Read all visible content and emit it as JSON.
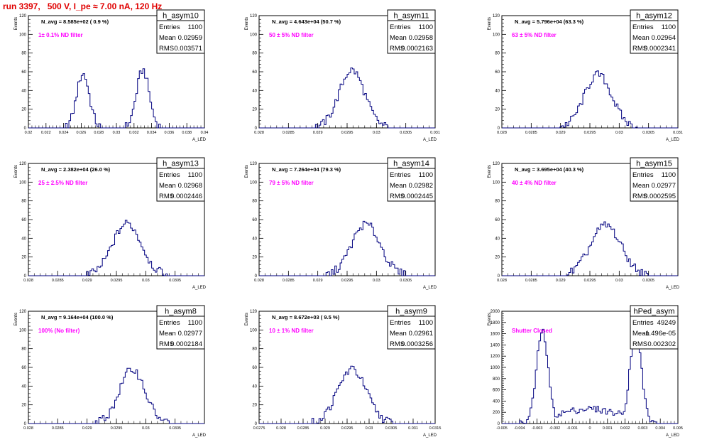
{
  "title": "run 3397,   500 V, I_pe ≈ 7.00 nA, 120 Hz",
  "colors": {
    "hist": "#00007f",
    "magenta": "#ff00ff",
    "title": "#e00000"
  },
  "stats_labels": {
    "entries": "Entries",
    "mean": "Mean",
    "rms": "RMS"
  },
  "axis_labels": {
    "y": "Events",
    "x": "A_LED"
  },
  "chart_data": [
    {
      "type": "bar",
      "name": "h_asym10",
      "nline": "N_avg = 8.585e+02 ( 0.9 %)",
      "filter": "1± 0.1% ND filter",
      "entries": "1100",
      "mean": "0.02959",
      "rms": "0.003571",
      "xlim": [
        0.02,
        0.04
      ],
      "ylim": [
        0,
        120
      ],
      "xticks": [
        "0.02",
        "0.022",
        "0.024",
        "0.026",
        "0.028",
        "0.03",
        "0.032",
        "0.034",
        "0.036",
        "0.038",
        "0.04"
      ],
      "yticks": [
        "0",
        "20",
        "40",
        "60",
        "80",
        "100",
        "120"
      ],
      "peaks": [
        {
          "c": 0.0262,
          "s": 0.00072,
          "h": 58
        },
        {
          "c": 0.033,
          "s": 0.00072,
          "h": 62
        }
      ]
    },
    {
      "type": "bar",
      "name": "h_asym11",
      "nline": "N_avg = 4.643e+04 (50.7 %)",
      "filter": "50 ± 5% ND filter",
      "entries": "1100",
      "mean": "0.02958",
      "rms": "0.0002163",
      "xlim": [
        0.028,
        0.031
      ],
      "ylim": [
        0,
        120
      ],
      "xticks": [
        "0.028",
        "0.0285",
        "0.029",
        "0.0295",
        "0.03",
        "0.0305",
        "0.031"
      ],
      "yticks": [
        "0",
        "20",
        "40",
        "60",
        "80",
        "100",
        "120"
      ],
      "peaks": [
        {
          "c": 0.02958,
          "s": 0.000216,
          "h": 62
        }
      ]
    },
    {
      "type": "bar",
      "name": "h_asym12",
      "nline": "N_avg = 5.796e+04 (63.3 %)",
      "filter": "63 ± 5% ND filter",
      "entries": "1100",
      "mean": "0.02964",
      "rms": "0.0002341",
      "xlim": [
        0.028,
        0.031
      ],
      "ylim": [
        0,
        120
      ],
      "xticks": [
        "0.028",
        "0.0285",
        "0.029",
        "0.0295",
        "0.03",
        "0.0305",
        "0.031"
      ],
      "yticks": [
        "0",
        "20",
        "40",
        "60",
        "80",
        "100",
        "120"
      ],
      "peaks": [
        {
          "c": 0.02964,
          "s": 0.000234,
          "h": 57
        }
      ]
    },
    {
      "type": "bar",
      "name": "h_asym13",
      "nline": "N_avg = 2.382e+04 (26.0 %)",
      "filter": "25 ± 2.5% ND filter",
      "entries": "1100",
      "mean": "0.02968",
      "rms": "0.0002446",
      "xlim": [
        0.028,
        0.031
      ],
      "ylim": [
        0,
        120
      ],
      "xticks": [
        "0.028",
        "0.0285",
        "0.029",
        "0.0295",
        "0.03",
        "0.0305"
      ],
      "yticks": [
        "0",
        "20",
        "40",
        "60",
        "80",
        "100",
        "120"
      ],
      "peaks": [
        {
          "c": 0.02968,
          "s": 0.000245,
          "h": 56
        }
      ]
    },
    {
      "type": "bar",
      "name": "h_asym14",
      "nline": "N_avg = 7.264e+04 (79.3 %)",
      "filter": "79 ± 5% ND filter",
      "entries": "1100",
      "mean": "0.02982",
      "rms": "0.0002445",
      "xlim": [
        0.028,
        0.031
      ],
      "ylim": [
        0,
        120
      ],
      "xticks": [
        "0.028",
        "0.0285",
        "0.029",
        "0.0295",
        "0.03",
        "0.0305"
      ],
      "yticks": [
        "0",
        "20",
        "40",
        "60",
        "80",
        "100",
        "120"
      ],
      "peaks": [
        {
          "c": 0.02982,
          "s": 0.000245,
          "h": 55
        }
      ]
    },
    {
      "type": "bar",
      "name": "h_asym15",
      "nline": "N_avg = 3.695e+04 (40.3 %)",
      "filter": "40 ± 4% ND filter",
      "entries": "1100",
      "mean": "0.02977",
      "rms": "0.0002595",
      "xlim": [
        0.028,
        0.031
      ],
      "ylim": [
        0,
        120
      ],
      "xticks": [
        "0.028",
        "0.0285",
        "0.029",
        "0.0295",
        "0.03",
        "0.0305"
      ],
      "yticks": [
        "0",
        "20",
        "40",
        "60",
        "80",
        "100",
        "120"
      ],
      "peaks": [
        {
          "c": 0.02977,
          "s": 0.00026,
          "h": 54
        }
      ]
    },
    {
      "type": "bar",
      "name": "h_asym8",
      "nline": "N_avg = 9.164e+04 (100.0 %)",
      "filter": "100% (No filter)",
      "entries": "1100",
      "mean": "0.02977",
      "rms": "0.0002184",
      "xlim": [
        0.028,
        0.031
      ],
      "ylim": [
        0,
        120
      ],
      "xticks": [
        "0.028",
        "0.0285",
        "0.029",
        "0.0295",
        "0.03",
        "0.0305"
      ],
      "yticks": [
        "0",
        "20",
        "40",
        "60",
        "80",
        "100",
        "120"
      ],
      "peaks": [
        {
          "c": 0.02977,
          "s": 0.000218,
          "h": 58
        }
      ]
    },
    {
      "type": "bar",
      "name": "h_asym9",
      "nline": "N_avg = 8.672e+03 ( 9.5 %)",
      "filter": "10 ± 1% ND filter",
      "entries": "1100",
      "mean": "0.02961",
      "rms": "0.0003256",
      "xlim": [
        0.0275,
        0.0315
      ],
      "ylim": [
        0,
        120
      ],
      "xticks": [
        "0.0275",
        "0.028",
        "0.0285",
        "0.029",
        "0.0295",
        "0.03",
        "0.0305",
        "0.031",
        "0.0315"
      ],
      "yticks": [
        "0",
        "20",
        "40",
        "60",
        "80",
        "100",
        "120"
      ],
      "peaks": [
        {
          "c": 0.02961,
          "s": 0.000326,
          "h": 58
        }
      ]
    },
    {
      "type": "bar",
      "name": "hPed_asym",
      "nline": "",
      "filter": "Shutter Closed",
      "entries": "49249",
      "mean": "-1.496e-05",
      "rms": "0.002302",
      "xlim": [
        -0.005,
        0.005
      ],
      "ylim": [
        0,
        2000
      ],
      "xticks": [
        "-0.005",
        "-0.004",
        "-0.003",
        "-0.002",
        "-0.001",
        "0",
        "0.001",
        "0.002",
        "0.003",
        "0.004",
        "0.005"
      ],
      "yticks": [
        "0",
        "200",
        "400",
        "600",
        "800",
        "1000",
        "1200",
        "1400",
        "1600",
        "1800",
        "2000"
      ],
      "peaks": [
        {
          "c": -0.0027,
          "s": 0.00033,
          "h": 1650
        },
        {
          "c": 0.0026,
          "s": 0.00033,
          "h": 1650
        }
      ],
      "plateau": 200
    }
  ]
}
